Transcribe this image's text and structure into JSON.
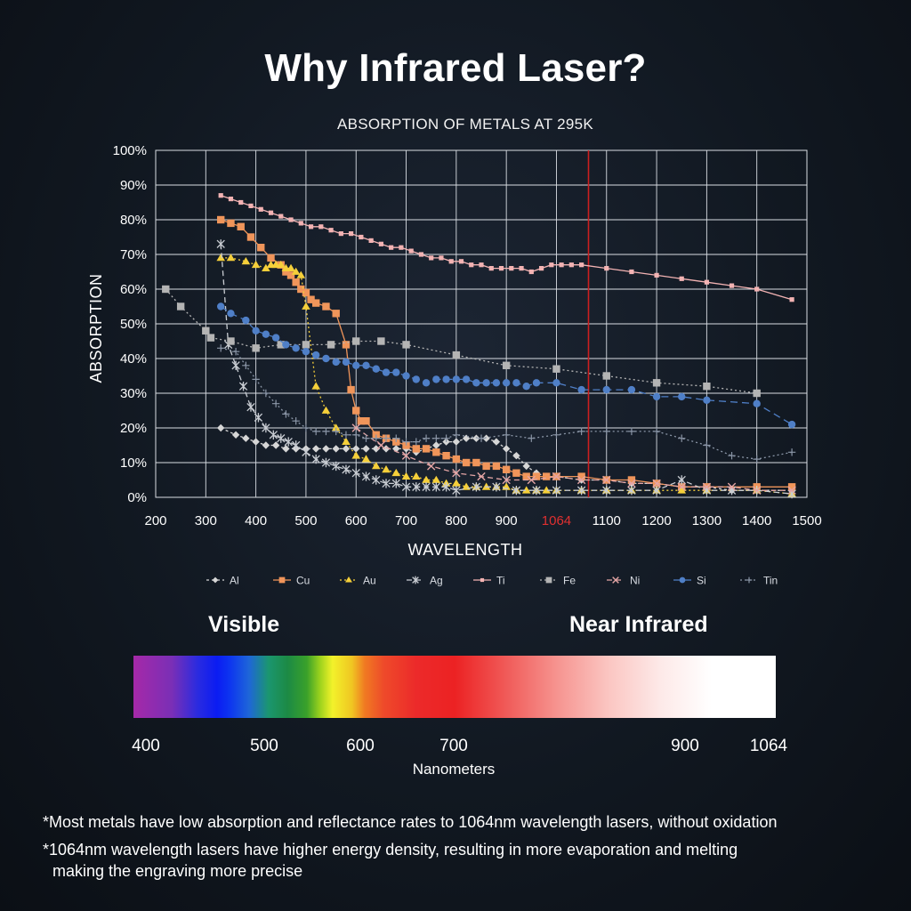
{
  "page": {
    "headline": "Why Infrared Laser?",
    "spectrum": {
      "visible_label": "Visible",
      "nir_label": "Near Infrared",
      "ticks": [
        "400",
        "500",
        "600",
        "700",
        "900",
        "1064"
      ],
      "unit": "Nanometers"
    },
    "notes": [
      "*Most metals have low absorption and reflectance rates to 1064nm wavelength lasers, without oxidation",
      "*1064nm wavelength lasers have higher energy density, resulting in more evaporation and melting",
      "making the engraving more precise"
    ]
  },
  "chart_data": {
    "type": "line",
    "title": "ABSORPTION OF METALS AT 295K",
    "xlabel": "WAVELENGTH",
    "ylabel": "ABSORPTION",
    "xlim": [
      200,
      1500
    ],
    "ylim": [
      0,
      100
    ],
    "x_ticks": [
      200,
      300,
      400,
      500,
      600,
      700,
      800,
      900,
      1064,
      1100,
      1200,
      1300,
      1400,
      1500
    ],
    "y_ticks": [
      "0%",
      "10%",
      "20%",
      "30%",
      "40%",
      "50%",
      "60%",
      "70%",
      "80%",
      "90%",
      "100%"
    ],
    "highlight_x": 1064,
    "highlight_color": "#cc1f1f",
    "grid": true,
    "legend_position": "bottom",
    "series": [
      {
        "name": "Al",
        "marker": "diamond",
        "dash": "3,3",
        "color": "#d6d6d6",
        "x": [
          330,
          360,
          380,
          400,
          420,
          440,
          460,
          480,
          500,
          520,
          540,
          560,
          580,
          600,
          620,
          640,
          660,
          680,
          700,
          720,
          740,
          760,
          780,
          800,
          820,
          840,
          860,
          880,
          900,
          920,
          940,
          960,
          980,
          1000,
          1050,
          1100,
          1150,
          1200,
          1250,
          1300,
          1350,
          1400,
          1470
        ],
        "y": [
          20,
          18,
          17,
          16,
          15,
          15,
          14,
          14,
          14,
          14,
          14,
          14,
          14,
          14,
          14,
          14,
          14,
          14,
          14,
          13,
          14,
          15,
          16,
          16,
          17,
          17,
          17,
          16,
          14,
          12,
          9,
          7,
          6,
          6,
          5,
          5,
          4,
          4,
          3,
          3,
          2,
          2,
          2
        ]
      },
      {
        "name": "Cu",
        "marker": "square",
        "dash": "",
        "color": "#f0955a",
        "x": [
          330,
          350,
          370,
          390,
          410,
          430,
          450,
          460,
          470,
          480,
          490,
          500,
          510,
          520,
          540,
          560,
          580,
          590,
          600,
          610,
          620,
          640,
          660,
          680,
          700,
          720,
          740,
          760,
          780,
          800,
          820,
          840,
          860,
          880,
          900,
          920,
          940,
          960,
          980,
          1000,
          1050,
          1100,
          1150,
          1200,
          1250,
          1300,
          1400,
          1470
        ],
        "y": [
          80,
          79,
          78,
          75,
          72,
          69,
          67,
          65,
          64,
          62,
          60,
          59,
          57,
          56,
          55,
          53,
          44,
          31,
          25,
          22,
          22,
          18,
          17,
          16,
          15,
          14,
          14,
          13,
          12,
          11,
          10,
          10,
          9,
          9,
          8,
          7,
          6,
          6,
          6,
          6,
          6,
          5,
          5,
          4,
          3,
          3,
          3,
          3
        ]
      },
      {
        "name": "Au",
        "marker": "triangle",
        "dash": "2,3",
        "color": "#f5cf3a",
        "x": [
          330,
          350,
          380,
          400,
          420,
          430,
          440,
          450,
          460,
          470,
          480,
          490,
          500,
          520,
          540,
          560,
          580,
          600,
          620,
          640,
          660,
          680,
          700,
          720,
          740,
          760,
          780,
          800,
          820,
          840,
          860,
          880,
          900,
          920,
          940,
          960,
          980,
          1000,
          1050,
          1100,
          1150,
          1200,
          1250,
          1300,
          1400,
          1470
        ],
        "y": [
          69,
          69,
          68,
          67,
          66,
          67,
          67,
          67,
          66,
          66,
          65,
          64,
          55,
          32,
          25,
          20,
          16,
          12,
          11,
          9,
          8,
          7,
          6,
          6,
          5,
          5,
          4,
          4,
          3,
          3,
          3,
          3,
          3,
          2,
          2,
          2,
          2,
          2,
          2,
          2,
          2,
          2,
          2,
          2,
          2,
          1
        ]
      },
      {
        "name": "Ag",
        "marker": "asterisk",
        "dash": "6,4",
        "color": "#c8ccd2",
        "x": [
          330,
          345,
          360,
          375,
          390,
          405,
          420,
          435,
          450,
          465,
          480,
          500,
          520,
          540,
          560,
          580,
          600,
          620,
          640,
          660,
          680,
          700,
          720,
          740,
          760,
          780,
          800,
          840,
          880,
          920,
          960,
          1000,
          1050,
          1100,
          1150,
          1200,
          1250,
          1300,
          1350,
          1400,
          1470
        ],
        "y": [
          73,
          44,
          38,
          32,
          26,
          23,
          20,
          18,
          17,
          16,
          15,
          13,
          11,
          10,
          9,
          8,
          7,
          6,
          5,
          4,
          4,
          3,
          3,
          3,
          3,
          3,
          2,
          3,
          3,
          2,
          2,
          2,
          2,
          2,
          2,
          2,
          5,
          2,
          2,
          2,
          1
        ]
      },
      {
        "name": "Ti",
        "marker": "square-small",
        "dash": "",
        "color": "#f3b3b3",
        "x": [
          330,
          350,
          370,
          390,
          410,
          430,
          450,
          470,
          490,
          510,
          530,
          550,
          570,
          590,
          610,
          630,
          650,
          670,
          690,
          710,
          730,
          750,
          770,
          790,
          810,
          830,
          850,
          870,
          890,
          910,
          930,
          950,
          970,
          990,
          1010,
          1030,
          1050,
          1100,
          1150,
          1200,
          1250,
          1300,
          1350,
          1400,
          1470
        ],
        "y": [
          87,
          86,
          85,
          84,
          83,
          82,
          81,
          80,
          79,
          78,
          78,
          77,
          76,
          76,
          75,
          74,
          73,
          72,
          72,
          71,
          70,
          69,
          69,
          68,
          68,
          67,
          67,
          66,
          66,
          66,
          66,
          65,
          66,
          67,
          67,
          67,
          67,
          66,
          65,
          64,
          63,
          62,
          61,
          60,
          57
        ]
      },
      {
        "name": "Fe",
        "marker": "square",
        "dash": "2,3",
        "color": "#b4b4b4",
        "x": [
          220,
          250,
          300,
          310,
          350,
          400,
          450,
          500,
          550,
          600,
          650,
          700,
          800,
          900,
          1000,
          1100,
          1200,
          1300,
          1400
        ],
        "y": [
          60,
          55,
          48,
          46,
          45,
          43,
          44,
          44,
          44,
          45,
          45,
          44,
          41,
          38,
          37,
          35,
          33,
          32,
          30
        ]
      },
      {
        "name": "Ni",
        "marker": "x",
        "dash": "6,4",
        "color": "#e4a5a5",
        "x": [
          600,
          650,
          700,
          750,
          800,
          850,
          900,
          950,
          1000,
          1050,
          1100,
          1150,
          1200,
          1250,
          1300,
          1350,
          1400,
          1470
        ],
        "y": [
          20,
          15,
          12,
          9,
          7,
          6,
          5,
          5,
          6,
          5,
          5,
          4,
          4,
          3,
          3,
          3,
          2,
          2
        ]
      },
      {
        "name": "Si",
        "marker": "circle",
        "dash": "8,5",
        "color": "#4f7fc7",
        "x": [
          330,
          350,
          380,
          400,
          420,
          440,
          460,
          480,
          500,
          520,
          540,
          560,
          580,
          600,
          620,
          640,
          660,
          680,
          700,
          720,
          740,
          760,
          780,
          800,
          820,
          840,
          860,
          880,
          900,
          920,
          940,
          960,
          1000,
          1050,
          1100,
          1150,
          1200,
          1250,
          1300,
          1400,
          1470
        ],
        "y": [
          55,
          53,
          51,
          48,
          47,
          46,
          44,
          43,
          42,
          41,
          40,
          39,
          39,
          38,
          38,
          37,
          36,
          36,
          35,
          34,
          33,
          34,
          34,
          34,
          34,
          33,
          33,
          33,
          33,
          33,
          32,
          33,
          33,
          31,
          31,
          31,
          29,
          29,
          28,
          27,
          21
        ]
      },
      {
        "name": "Tin",
        "marker": "plus",
        "dash": "2,3",
        "color": "#8a95a6",
        "x": [
          330,
          360,
          380,
          400,
          420,
          440,
          460,
          480,
          500,
          520,
          540,
          560,
          580,
          600,
          620,
          640,
          660,
          680,
          700,
          720,
          740,
          760,
          780,
          800,
          850,
          900,
          950,
          1000,
          1050,
          1100,
          1150,
          1200,
          1250,
          1300,
          1350,
          1400,
          1470
        ],
        "y": [
          43,
          42,
          38,
          34,
          30,
          27,
          24,
          22,
          20,
          19,
          19,
          19,
          18,
          18,
          17,
          17,
          17,
          17,
          16,
          16,
          17,
          17,
          17,
          18,
          17,
          18,
          17,
          18,
          19,
          19,
          19,
          19,
          17,
          15,
          12,
          11,
          13
        ]
      }
    ]
  }
}
